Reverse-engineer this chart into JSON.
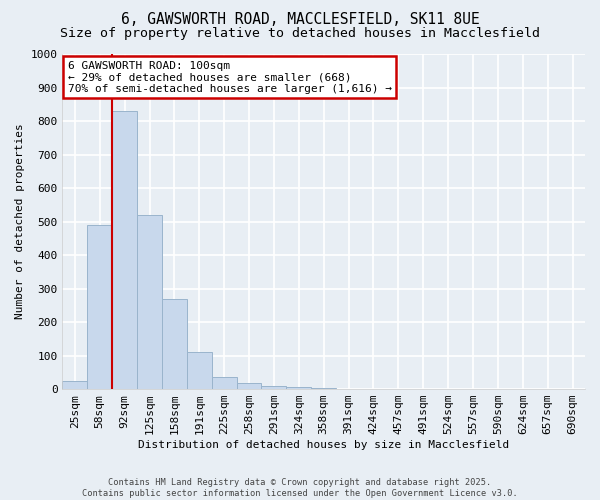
{
  "title": "6, GAWSWORTH ROAD, MACCLESFIELD, SK11 8UE",
  "subtitle": "Size of property relative to detached houses in Macclesfield",
  "xlabel": "Distribution of detached houses by size in Macclesfield",
  "ylabel": "Number of detached properties",
  "footer_line1": "Contains HM Land Registry data © Crown copyright and database right 2025.",
  "footer_line2": "Contains public sector information licensed under the Open Government Licence v3.0.",
  "categories": [
    "25sqm",
    "58sqm",
    "92sqm",
    "125sqm",
    "158sqm",
    "191sqm",
    "225sqm",
    "258sqm",
    "291sqm",
    "324sqm",
    "358sqm",
    "391sqm",
    "424sqm",
    "457sqm",
    "491sqm",
    "524sqm",
    "557sqm",
    "590sqm",
    "624sqm",
    "657sqm",
    "690sqm"
  ],
  "values": [
    25,
    490,
    830,
    520,
    270,
    110,
    35,
    18,
    10,
    5,
    2,
    1,
    0,
    0,
    0,
    0,
    0,
    0,
    0,
    0,
    0
  ],
  "bar_color": "#c8d8ec",
  "bar_edge_color": "#9ab4cc",
  "red_line_bar_index": 2,
  "annotation_title": "6 GAWSWORTH ROAD: 100sqm",
  "annotation_line2": "← 29% of detached houses are smaller (668)",
  "annotation_line3": "70% of semi-detached houses are larger (1,616) →",
  "annotation_box_facecolor": "#ffffff",
  "annotation_border_color": "#cc0000",
  "red_line_color": "#cc0000",
  "ylim": [
    0,
    1000
  ],
  "yticks": [
    0,
    100,
    200,
    300,
    400,
    500,
    600,
    700,
    800,
    900,
    1000
  ],
  "background_color": "#e8eef4",
  "plot_bg_color": "#e8eef4",
  "title_fontsize": 10.5,
  "subtitle_fontsize": 9.5,
  "axis_fontsize": 8,
  "tick_fontsize": 8,
  "grid_color": "#ffffff",
  "grid_linewidth": 1.2
}
